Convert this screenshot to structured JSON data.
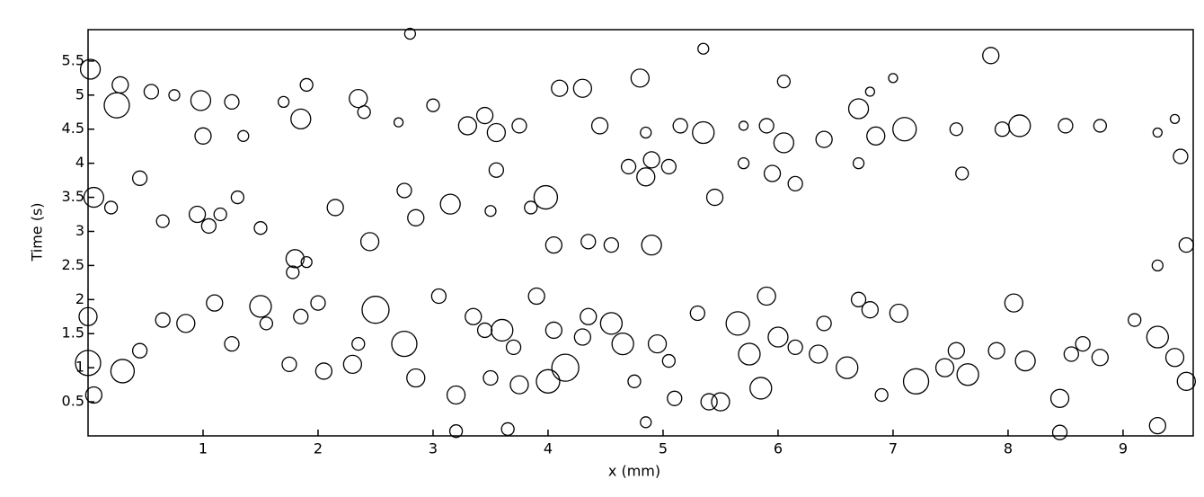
{
  "chart_data": {
    "type": "bubble",
    "xlabel": "x (mm)",
    "ylabel": "Time (s)",
    "xlim": [
      0,
      9.61
    ],
    "ylim": [
      0,
      5.96
    ],
    "xticks": [
      1,
      2,
      3,
      4,
      5,
      6,
      7,
      8,
      9
    ],
    "yticks": [
      0.5,
      1,
      1.5,
      2,
      2.5,
      3,
      3.5,
      4,
      4.5,
      5,
      5.5
    ],
    "color": "#000000",
    "x": [
      0.02,
      0.25,
      0.28,
      0.55,
      0.75,
      0.98,
      1.0,
      1.25,
      1.35,
      1.7,
      1.85,
      1.9,
      2.35,
      2.4,
      2.7,
      3.0,
      3.3,
      3.45,
      3.55,
      3.75,
      4.1,
      4.3,
      4.45,
      4.8,
      4.85,
      5.15,
      5.35,
      5.35,
      5.7,
      5.9,
      6.05,
      6.05,
      6.4,
      6.7,
      6.85,
      7.1,
      7.55,
      7.85,
      7.95,
      8.1,
      8.5,
      8.8,
      9.3,
      9.5,
      9.45,
      0.05,
      0.2,
      0.45,
      0.65,
      0.95,
      1.05,
      1.15,
      1.3,
      1.5,
      1.8,
      1.78,
      1.9,
      2.15,
      2.45,
      2.75,
      2.85,
      3.15,
      3.5,
      3.55,
      3.85,
      3.98,
      4.05,
      4.35,
      4.55,
      4.7,
      4.85,
      4.9,
      4.9,
      5.05,
      5.45,
      5.7,
      5.95,
      6.15,
      6.7,
      7.6,
      9.3,
      9.55,
      0.0,
      0.0,
      0.05,
      0.3,
      0.45,
      0.65,
      0.85,
      1.1,
      1.25,
      1.5,
      1.55,
      1.75,
      1.85,
      2.0,
      2.05,
      2.3,
      2.35,
      2.5,
      2.75,
      2.85,
      3.05,
      3.2,
      3.35,
      3.45,
      3.5,
      3.6,
      3.7,
      3.75,
      3.9,
      4.0,
      4.05,
      4.15,
      4.3,
      4.35,
      4.55,
      4.65,
      4.75,
      4.95,
      5.05,
      5.1,
      5.3,
      5.4,
      5.5,
      5.65,
      5.75,
      5.85,
      5.9,
      6.0,
      6.15,
      6.35,
      6.4,
      6.6,
      6.7,
      6.8,
      6.9,
      7.05,
      7.2,
      7.45,
      7.55,
      7.65,
      7.9,
      8.05,
      8.15,
      8.45,
      8.55,
      8.65,
      8.8,
      9.1,
      9.3,
      9.45,
      9.55,
      9.3,
      8.45,
      3.2,
      3.65,
      4.85,
      2.8,
      7.0,
      6.8
    ],
    "values": [
      5.38,
      4.85,
      5.15,
      5.05,
      5.0,
      4.92,
      4.4,
      4.9,
      4.4,
      4.9,
      4.65,
      5.15,
      4.95,
      4.75,
      4.6,
      4.85,
      4.55,
      4.7,
      4.45,
      4.55,
      5.1,
      5.1,
      4.55,
      5.25,
      4.45,
      4.55,
      4.45,
      5.68,
      4.55,
      4.55,
      4.3,
      5.2,
      4.35,
      4.8,
      4.4,
      4.5,
      4.5,
      5.58,
      4.5,
      4.55,
      4.55,
      4.55,
      4.45,
      4.1,
      4.65,
      3.5,
      3.35,
      3.78,
      3.15,
      3.25,
      3.08,
      3.25,
      3.5,
      3.05,
      2.6,
      2.4,
      2.55,
      3.35,
      2.85,
      3.6,
      3.2,
      3.4,
      3.3,
      3.9,
      3.35,
      3.5,
      2.8,
      2.85,
      2.8,
      3.95,
      3.8,
      4.05,
      2.8,
      3.95,
      3.5,
      4.0,
      3.85,
      3.7,
      4.0,
      3.85,
      2.5,
      2.8,
      1.75,
      1.07,
      0.6,
      0.95,
      1.25,
      1.7,
      1.65,
      1.95,
      1.35,
      1.9,
      1.65,
      1.05,
      1.75,
      1.95,
      0.95,
      1.05,
      1.35,
      1.85,
      1.35,
      0.85,
      2.05,
      0.6,
      1.75,
      1.55,
      0.85,
      1.55,
      1.3,
      0.75,
      2.05,
      0.8,
      1.55,
      1.0,
      1.45,
      1.75,
      1.65,
      1.35,
      0.8,
      1.35,
      1.1,
      0.55,
      1.8,
      0.5,
      0.5,
      1.65,
      1.2,
      0.7,
      2.05,
      1.45,
      1.3,
      1.2,
      1.65,
      1.0,
      2.0,
      1.85,
      0.6,
      1.8,
      0.8,
      1.0,
      1.25,
      0.9,
      1.25,
      1.95,
      1.1,
      0.55,
      1.2,
      1.35,
      1.15,
      1.7,
      1.45,
      1.15,
      0.8,
      0.15,
      0.05,
      0.07,
      0.1,
      0.2,
      5.9,
      5.25,
      5.05
    ],
    "sizes": [
      11,
      14,
      9,
      8,
      6,
      11,
      9,
      8,
      6,
      6,
      11,
      7,
      10,
      7,
      5,
      7,
      10,
      9,
      10,
      8,
      9,
      10,
      9,
      10,
      6,
      8,
      12,
      6,
      5,
      8,
      11,
      7,
      9,
      11,
      10,
      13,
      7,
      9,
      8,
      12,
      8,
      7,
      5,
      8,
      5,
      11,
      7,
      8,
      7,
      9,
      8,
      7,
      7,
      7,
      10,
      7,
      6,
      9,
      10,
      8,
      9,
      11,
      6,
      8,
      7,
      13,
      9,
      8,
      8,
      8,
      10,
      9,
      11,
      8,
      9,
      6,
      9,
      8,
      6,
      7,
      6,
      8,
      10,
      14,
      9,
      13,
      8,
      8,
      10,
      9,
      8,
      12,
      7,
      8,
      8,
      8,
      9,
      10,
      7,
      15,
      14,
      10,
      8,
      10,
      9,
      8,
      8,
      12,
      8,
      10,
      9,
      13,
      9,
      15,
      9,
      9,
      12,
      12,
      7,
      10,
      7,
      8,
      8,
      9,
      10,
      13,
      12,
      12,
      10,
      11,
      8,
      10,
      8,
      12,
      8,
      9,
      7,
      10,
      14,
      10,
      9,
      12,
      9,
      10,
      11,
      10,
      8,
      8,
      9,
      7,
      12,
      10,
      10,
      9,
      8,
      7,
      7,
      6,
      6,
      5,
      5
    ]
  }
}
